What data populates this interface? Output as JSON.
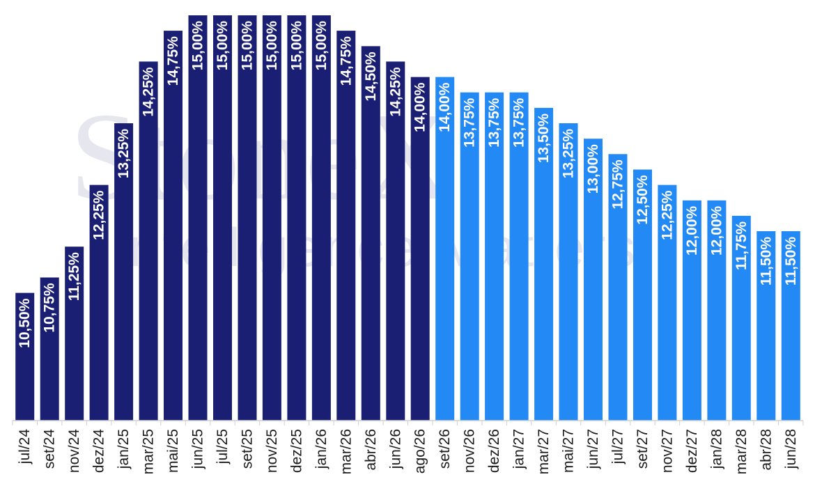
{
  "watermark": {
    "logo": "StoneX",
    "subtitle": "Intelligence Matters"
  },
  "colors": {
    "actual": "#1b1f73",
    "forecast": "#2389f5",
    "label": "#ffffff",
    "axis": "#cfcfcf"
  },
  "chart_data": {
    "type": "bar",
    "title": "",
    "xlabel": "",
    "ylabel": "",
    "ylim": [
      0,
      15
    ],
    "grid": false,
    "legend": "none",
    "categories": [
      "jul/24",
      "set/24",
      "nov/24",
      "dez/24",
      "jan/25",
      "mar/25",
      "mai/25",
      "jun/25",
      "jul/25",
      "set/25",
      "nov/25",
      "dez/25",
      "jan/26",
      "mar/26",
      "abr/26",
      "jun/26",
      "ago/26",
      "set/26",
      "nov/26",
      "dez/26",
      "jan/27",
      "mar/27",
      "mai/27",
      "jun/27",
      "jul/27",
      "set/27",
      "nov/27",
      "dez/27",
      "jan/28",
      "mar/28",
      "abr/28",
      "jun/28"
    ],
    "values": [
      10.5,
      10.75,
      11.25,
      12.25,
      13.25,
      14.25,
      14.75,
      15.0,
      15.0,
      15.0,
      15.0,
      15.0,
      15.0,
      14.75,
      14.5,
      14.25,
      14.0,
      14.0,
      13.75,
      13.75,
      13.75,
      13.5,
      13.25,
      13.0,
      12.75,
      12.5,
      12.25,
      12.0,
      12.0,
      11.75,
      11.5,
      11.5
    ],
    "labels": [
      "10,50%",
      "10,75%",
      "11,25%",
      "12,25%",
      "13,25%",
      "14,25%",
      "14,75%",
      "15,00%",
      "15,00%",
      "15,00%",
      "15,00%",
      "15,00%",
      "15,00%",
      "14,75%",
      "14,50%",
      "14,25%",
      "14,00%",
      "14,00%",
      "13,75%",
      "13,75%",
      "13,75%",
      "13,50%",
      "13,25%",
      "13,00%",
      "12,75%",
      "12,50%",
      "12,25%",
      "12,00%",
      "12,00%",
      "11,75%",
      "11,50%",
      "11,50%"
    ],
    "series_type": [
      "actual",
      "actual",
      "actual",
      "actual",
      "actual",
      "actual",
      "actual",
      "actual",
      "actual",
      "actual",
      "actual",
      "actual",
      "actual",
      "actual",
      "actual",
      "actual",
      "actual",
      "forecast",
      "forecast",
      "forecast",
      "forecast",
      "forecast",
      "forecast",
      "forecast",
      "forecast",
      "forecast",
      "forecast",
      "forecast",
      "forecast",
      "forecast",
      "forecast",
      "forecast"
    ]
  }
}
